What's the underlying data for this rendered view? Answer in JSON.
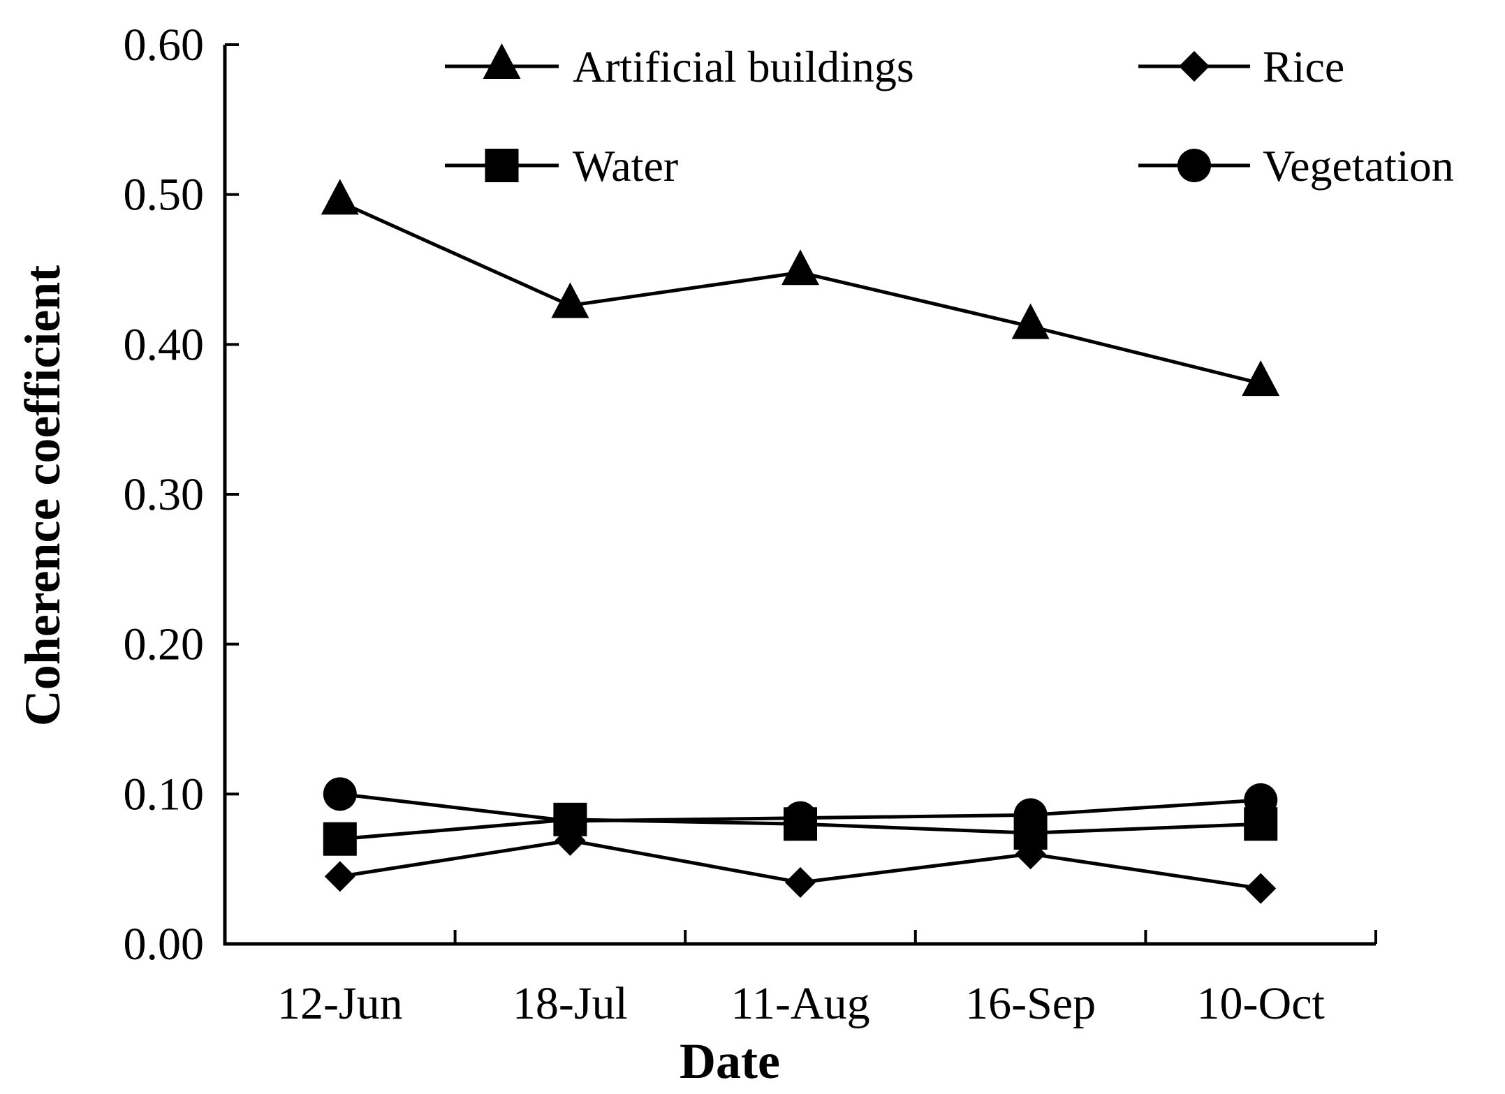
{
  "chart_data": {
    "type": "line",
    "title": "",
    "xlabel": "Date",
    "ylabel": "Coherence coefficient",
    "categories": [
      "12-Jun",
      "18-Jul",
      "11-Aug",
      "16-Sep",
      "10-Oct"
    ],
    "ylim": [
      0,
      0.6
    ],
    "yticks": [
      "0.00",
      "0.10",
      "0.20",
      "0.30",
      "0.40",
      "0.50",
      "0.60"
    ],
    "grid": false,
    "legend_position": "top",
    "series": [
      {
        "name": "Artificial buildings",
        "marker": "triangle",
        "color": "#000000",
        "values": [
          0.495,
          0.426,
          0.448,
          0.412,
          0.374
        ]
      },
      {
        "name": "Rice",
        "marker": "diamond",
        "color": "#000000",
        "values": [
          0.045,
          0.069,
          0.041,
          0.06,
          0.037
        ]
      },
      {
        "name": "Water",
        "marker": "square",
        "color": "#000000",
        "values": [
          0.07,
          0.083,
          0.08,
          0.074,
          0.08
        ]
      },
      {
        "name": "Vegetation",
        "marker": "circle",
        "color": "#000000",
        "values": [
          0.1,
          0.082,
          0.084,
          0.086,
          0.096
        ]
      }
    ]
  }
}
